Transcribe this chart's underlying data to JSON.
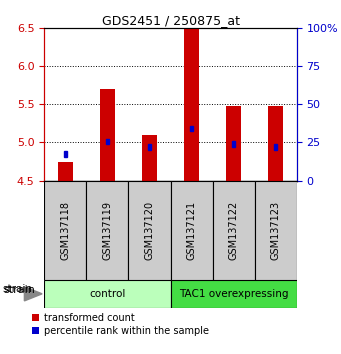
{
  "title": "GDS2451 / 250875_at",
  "samples": [
    "GSM137118",
    "GSM137119",
    "GSM137120",
    "GSM137121",
    "GSM137122",
    "GSM137123"
  ],
  "bar_heights": [
    4.75,
    5.7,
    5.1,
    6.5,
    5.48,
    5.48
  ],
  "bar_base": 4.5,
  "percentile_values": [
    4.85,
    5.01,
    4.94,
    5.18,
    4.98,
    4.94
  ],
  "ylim_left": [
    4.5,
    6.5
  ],
  "ylim_right": [
    0,
    100
  ],
  "yticks_left": [
    4.5,
    5.0,
    5.5,
    6.0,
    6.5
  ],
  "yticks_right": [
    0,
    25,
    50,
    75,
    100
  ],
  "ytick_labels_right": [
    "0",
    "25",
    "50",
    "75",
    "100%"
  ],
  "bar_color": "#cc0000",
  "blue_color": "#0000cc",
  "left_tick_color": "#cc0000",
  "right_tick_color": "#0000cc",
  "groups": [
    {
      "label": "control",
      "indices": [
        0,
        1,
        2
      ],
      "color": "#bbffbb"
    },
    {
      "label": "TAC1 overexpressing",
      "indices": [
        3,
        4,
        5
      ],
      "color": "#44dd44"
    }
  ],
  "sample_box_color": "#cccccc",
  "strain_label": "strain",
  "legend_red": "transformed count",
  "legend_blue": "percentile rank within the sample",
  "bar_width": 0.35,
  "figsize": [
    3.41,
    3.54
  ],
  "dpi": 100
}
